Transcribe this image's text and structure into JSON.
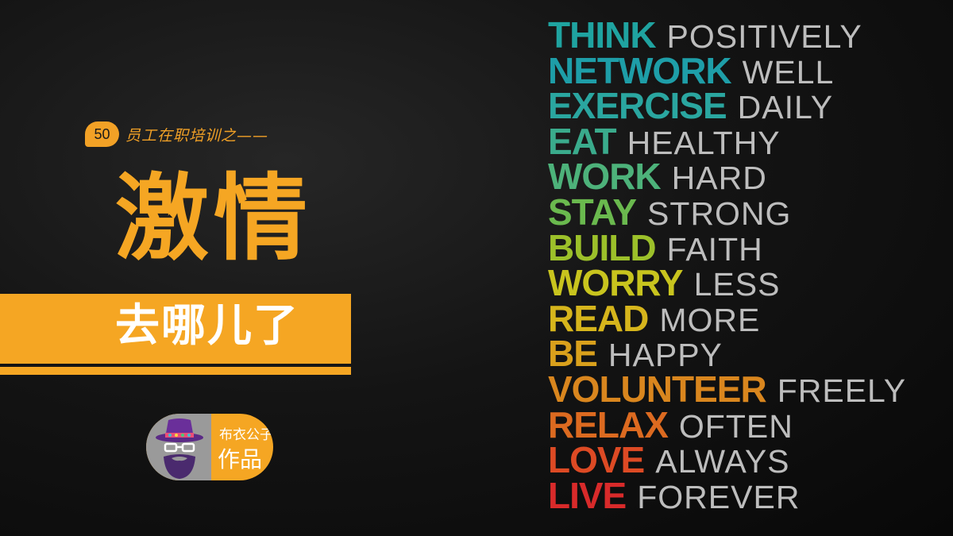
{
  "series": {
    "number": "50",
    "title": "员工在职培训之——"
  },
  "main_title": "激情",
  "banner_text": "去哪儿了",
  "author": {
    "line1": "布衣公子",
    "line2": "作品"
  },
  "mottos": [
    {
      "bold": "THINK",
      "light": "POSITIVELY",
      "color": "#1fa3a0"
    },
    {
      "bold": "NETWORK",
      "light": "WELL",
      "color": "#1e9ea8"
    },
    {
      "bold": "EXERCISE",
      "light": "DAILY",
      "color": "#2aa6a0"
    },
    {
      "bold": "EAT",
      "light": "HEALTHY",
      "color": "#3aab8c"
    },
    {
      "bold": "WORK",
      "light": "HARD",
      "color": "#4db27a"
    },
    {
      "bold": "STAY",
      "light": "STRONG",
      "color": "#6ab94e"
    },
    {
      "bold": "BUILD",
      "light": "FAITH",
      "color": "#9cc02a"
    },
    {
      "bold": "WORRY",
      "light": "LESS",
      "color": "#c8c41e"
    },
    {
      "bold": "READ",
      "light": "MORE",
      "color": "#d6b51c"
    },
    {
      "bold": "BE",
      "light": "HAPPY",
      "color": "#d9a01c"
    },
    {
      "bold": "VOLUNTEER",
      "light": "FREELY",
      "color": "#d9861e"
    },
    {
      "bold": "RELAX",
      "light": "OFTEN",
      "color": "#dc6a20"
    },
    {
      "bold": "LOVE",
      "light": "ALWAYS",
      "color": "#dd4a24"
    },
    {
      "bold": "LIVE",
      "light": "FOREVER",
      "color": "#d82a2a"
    }
  ]
}
